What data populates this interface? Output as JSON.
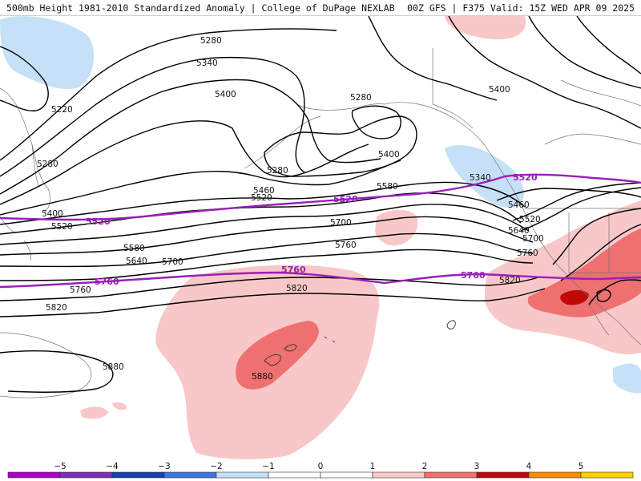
{
  "header": {
    "title": "500mb Height 1981-2010 Standardized Anomaly | College of DuPage NEXLAB",
    "run_info": "00Z GFS | F375 Valid: 15Z WED APR 09 2025"
  },
  "contour_labels": {
    "c5280a": "5280",
    "c5280b": "5280",
    "c5280c": "5280",
    "c5280d": "5280",
    "c5340a": "5340",
    "c5340b": "5340",
    "c5400a": "5400",
    "c5400b": "5400",
    "c5400c": "5400",
    "c5400d": "5400",
    "c5220": "5220",
    "c5460a": "5460",
    "c5460b": "5460",
    "c5520a": "5520",
    "c5520b": "5520",
    "c5520c": "5520",
    "c5580a": "5580",
    "c5580b": "5580",
    "c5640a": "5640",
    "c5640b": "5640",
    "c5700a": "5700",
    "c5700b": "5700",
    "c5700c": "5700",
    "c5760a": "5760",
    "c5760b": "5760",
    "c5760c": "5760",
    "c5820a": "5820",
    "c5820b": "5820",
    "c5820c": "5820",
    "c5880a": "5880",
    "c5880b": "5880"
  },
  "highlight_labels": {
    "h5520a": "5520",
    "h5520b": "5520",
    "h5520c": "5520",
    "h5760a": "5760",
    "h5760b": "5760",
    "h5760c": "5760"
  },
  "colors": {
    "highlight_contour": "#9a1fb8",
    "anom_pos1": "#f8c8c8",
    "anom_pos2": "#ee7070",
    "anom_pos3": "#c00a0a",
    "anom_neg1": "#c6e0f7"
  },
  "colorbar": {
    "ticks": [
      "−5",
      "−4",
      "−3",
      "−2",
      "−1",
      "0",
      "1",
      "2",
      "3",
      "4",
      "5"
    ],
    "colors": [
      "#b000c8",
      "#7a2fb0",
      "#1a3fb0",
      "#3a78e0",
      "#c6e0f7",
      "#ffffff",
      "#ffffff",
      "#f8c8c8",
      "#ee7070",
      "#c00a0a",
      "#ff8c00",
      "#ffd200"
    ]
  }
}
